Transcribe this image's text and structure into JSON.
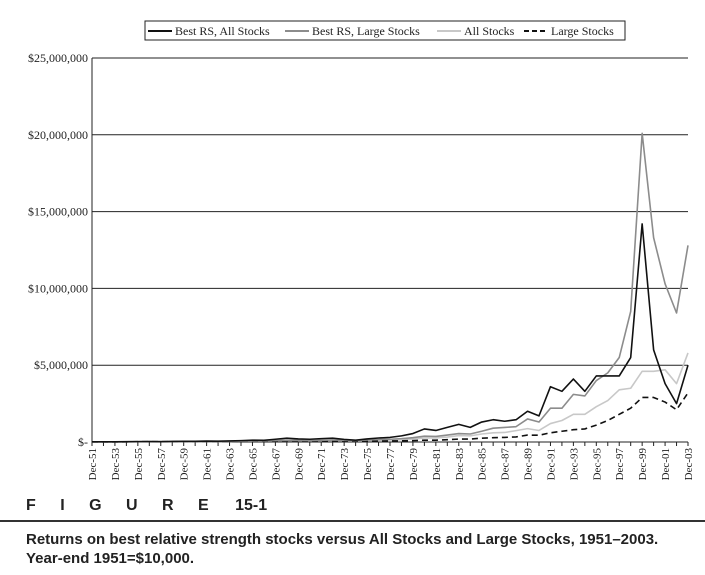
{
  "figure": {
    "label": "F I G U R E",
    "number": "15-1",
    "caption": "Returns on best relative strength stocks versus All Stocks and Large Stocks, 1951–2003. Year-end 1951=$10,000."
  },
  "chart_data": {
    "type": "line",
    "title": "",
    "xlabel": "",
    "ylabel": "",
    "ylim": [
      0,
      25000000
    ],
    "y_ticks": [
      0,
      5000000,
      10000000,
      15000000,
      20000000,
      25000000
    ],
    "y_tick_labels": [
      "$-",
      "$5,000,000",
      "$10,000,000",
      "$15,000,000",
      "$20,000,000",
      "$25,000,000"
    ],
    "grid": "horizontal",
    "legend_position": "top",
    "x": [
      "Dec-51",
      "Dec-52",
      "Dec-53",
      "Dec-54",
      "Dec-55",
      "Dec-56",
      "Dec-57",
      "Dec-58",
      "Dec-59",
      "Dec-60",
      "Dec-61",
      "Dec-62",
      "Dec-63",
      "Dec-64",
      "Dec-65",
      "Dec-66",
      "Dec-67",
      "Dec-68",
      "Dec-69",
      "Dec-70",
      "Dec-71",
      "Dec-72",
      "Dec-73",
      "Dec-74",
      "Dec-75",
      "Dec-76",
      "Dec-77",
      "Dec-78",
      "Dec-79",
      "Dec-80",
      "Dec-81",
      "Dec-82",
      "Dec-83",
      "Dec-84",
      "Dec-85",
      "Dec-86",
      "Dec-87",
      "Dec-88",
      "Dec-89",
      "Dec-90",
      "Dec-91",
      "Dec-92",
      "Dec-93",
      "Dec-94",
      "Dec-95",
      "Dec-96",
      "Dec-97",
      "Dec-98",
      "Dec-99",
      "Dec-00",
      "Dec-01",
      "Dec-02",
      "Dec-03"
    ],
    "x_tick_labels": [
      "Dec-51",
      "Dec-53",
      "Dec-55",
      "Dec-57",
      "Dec-59",
      "Dec-61",
      "Dec-63",
      "Dec-65",
      "Dec-67",
      "Dec-69",
      "Dec-71",
      "Dec-73",
      "Dec-75",
      "Dec-77",
      "Dec-79",
      "Dec-81",
      "Dec-83",
      "Dec-85",
      "Dec-87",
      "Dec-89",
      "Dec-91",
      "Dec-93",
      "Dec-95",
      "Dec-97",
      "Dec-99",
      "Dec-01",
      "Dec-03"
    ],
    "series": [
      {
        "name": "Best RS, All Stocks",
        "color": "#111111",
        "dash": "solid",
        "values": [
          10000,
          12000,
          13000,
          20000,
          24000,
          26000,
          23000,
          35000,
          45000,
          46000,
          60000,
          55000,
          70000,
          90000,
          120000,
          110000,
          180000,
          250000,
          200000,
          180000,
          220000,
          250000,
          170000,
          120000,
          200000,
          260000,
          300000,
          400000,
          550000,
          850000,
          750000,
          950000,
          1150000,
          950000,
          1300000,
          1450000,
          1350000,
          1450000,
          2000000,
          1700000,
          3600000,
          3300000,
          4100000,
          3300000,
          4300000,
          4300000,
          4300000,
          5500000,
          14200000,
          6000000,
          3800000,
          2500000,
          5000000
        ]
      },
      {
        "name": "Best RS, Large Stocks",
        "color": "#8c8c8c",
        "dash": "solid",
        "values": [
          10000,
          11000,
          12000,
          15000,
          18000,
          20000,
          19000,
          25000,
          30000,
          31000,
          40000,
          37000,
          45000,
          55000,
          70000,
          65000,
          90000,
          110000,
          100000,
          95000,
          110000,
          130000,
          110000,
          90000,
          130000,
          160000,
          180000,
          220000,
          280000,
          380000,
          360000,
          450000,
          550000,
          520000,
          700000,
          900000,
          950000,
          1000000,
          1500000,
          1300000,
          2200000,
          2200000,
          3100000,
          3000000,
          4000000,
          4500000,
          5500000,
          8500000,
          20100000,
          13300000,
          10300000,
          8400000,
          12800000
        ]
      },
      {
        "name": "All Stocks",
        "color": "#c8c8c8",
        "dash": "solid",
        "values": [
          10000,
          11000,
          12000,
          17000,
          20000,
          21000,
          20000,
          28000,
          33000,
          33000,
          42000,
          38000,
          45000,
          55000,
          65000,
          60000,
          80000,
          95000,
          85000,
          80000,
          90000,
          100000,
          80000,
          60000,
          85000,
          110000,
          125000,
          150000,
          190000,
          260000,
          260000,
          320000,
          420000,
          400000,
          520000,
          600000,
          620000,
          740000,
          870000,
          750000,
          1200000,
          1400000,
          1800000,
          1800000,
          2300000,
          2700000,
          3400000,
          3500000,
          4600000,
          4600000,
          4700000,
          3800000,
          5800000
        ]
      },
      {
        "name": "Large Stocks",
        "color": "#111111",
        "dash": "dashed",
        "values": [
          10000,
          10500,
          10800,
          15000,
          18000,
          19000,
          17000,
          23000,
          26000,
          26000,
          32000,
          29000,
          34000,
          40000,
          45000,
          41000,
          50000,
          55000,
          50000,
          50000,
          55000,
          65000,
          55000,
          42000,
          55000,
          70000,
          70000,
          75000,
          90000,
          120000,
          120000,
          150000,
          190000,
          190000,
          250000,
          280000,
          300000,
          330000,
          450000,
          440000,
          600000,
          700000,
          800000,
          850000,
          1100000,
          1400000,
          1800000,
          2200000,
          2900000,
          2900000,
          2600000,
          2100000,
          3200000
        ]
      }
    ]
  }
}
